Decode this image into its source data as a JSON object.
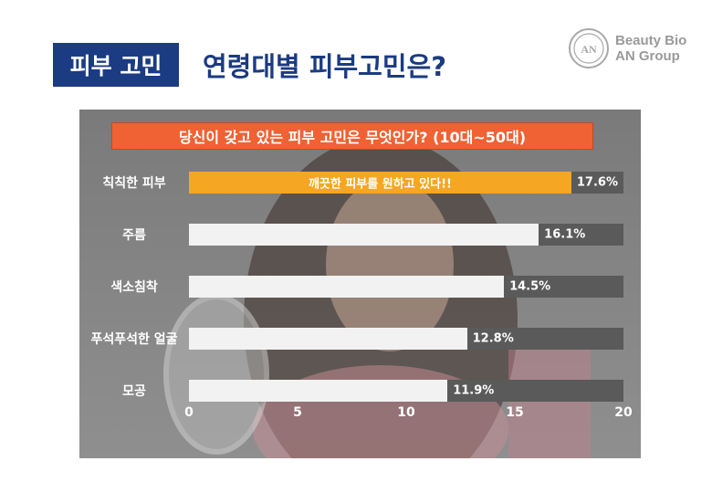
{
  "header": {
    "badge": "피부 고민",
    "title": "연령대별 피부고민은?"
  },
  "logo": {
    "line1": "Beauty Bio",
    "line2": "AN Group"
  },
  "chart_data": {
    "type": "bar",
    "orientation": "horizontal",
    "title": "당신이 갖고 있는 피부 고민은 무엇인가? (10대~50대)",
    "categories": [
      "칙칙한 피부",
      "주름",
      "색소침착",
      "푸석푸석한 얼굴",
      "모공"
    ],
    "values": [
      17.6,
      16.1,
      14.5,
      12.8,
      11.9
    ],
    "value_labels": [
      "17.6%",
      "16.1%",
      "14.5%",
      "12.8%",
      "11.9%"
    ],
    "xlim": [
      0,
      20
    ],
    "xticks": [
      0,
      5,
      10,
      15,
      20
    ],
    "highlight_index": 0,
    "annotation": "깨끗한 피부를 원하고 있다!!",
    "colors": {
      "highlight": "#f5a623",
      "bar": "#f2f2f2",
      "track": "#5a5a5a",
      "title_bg": "#f06133"
    }
  }
}
